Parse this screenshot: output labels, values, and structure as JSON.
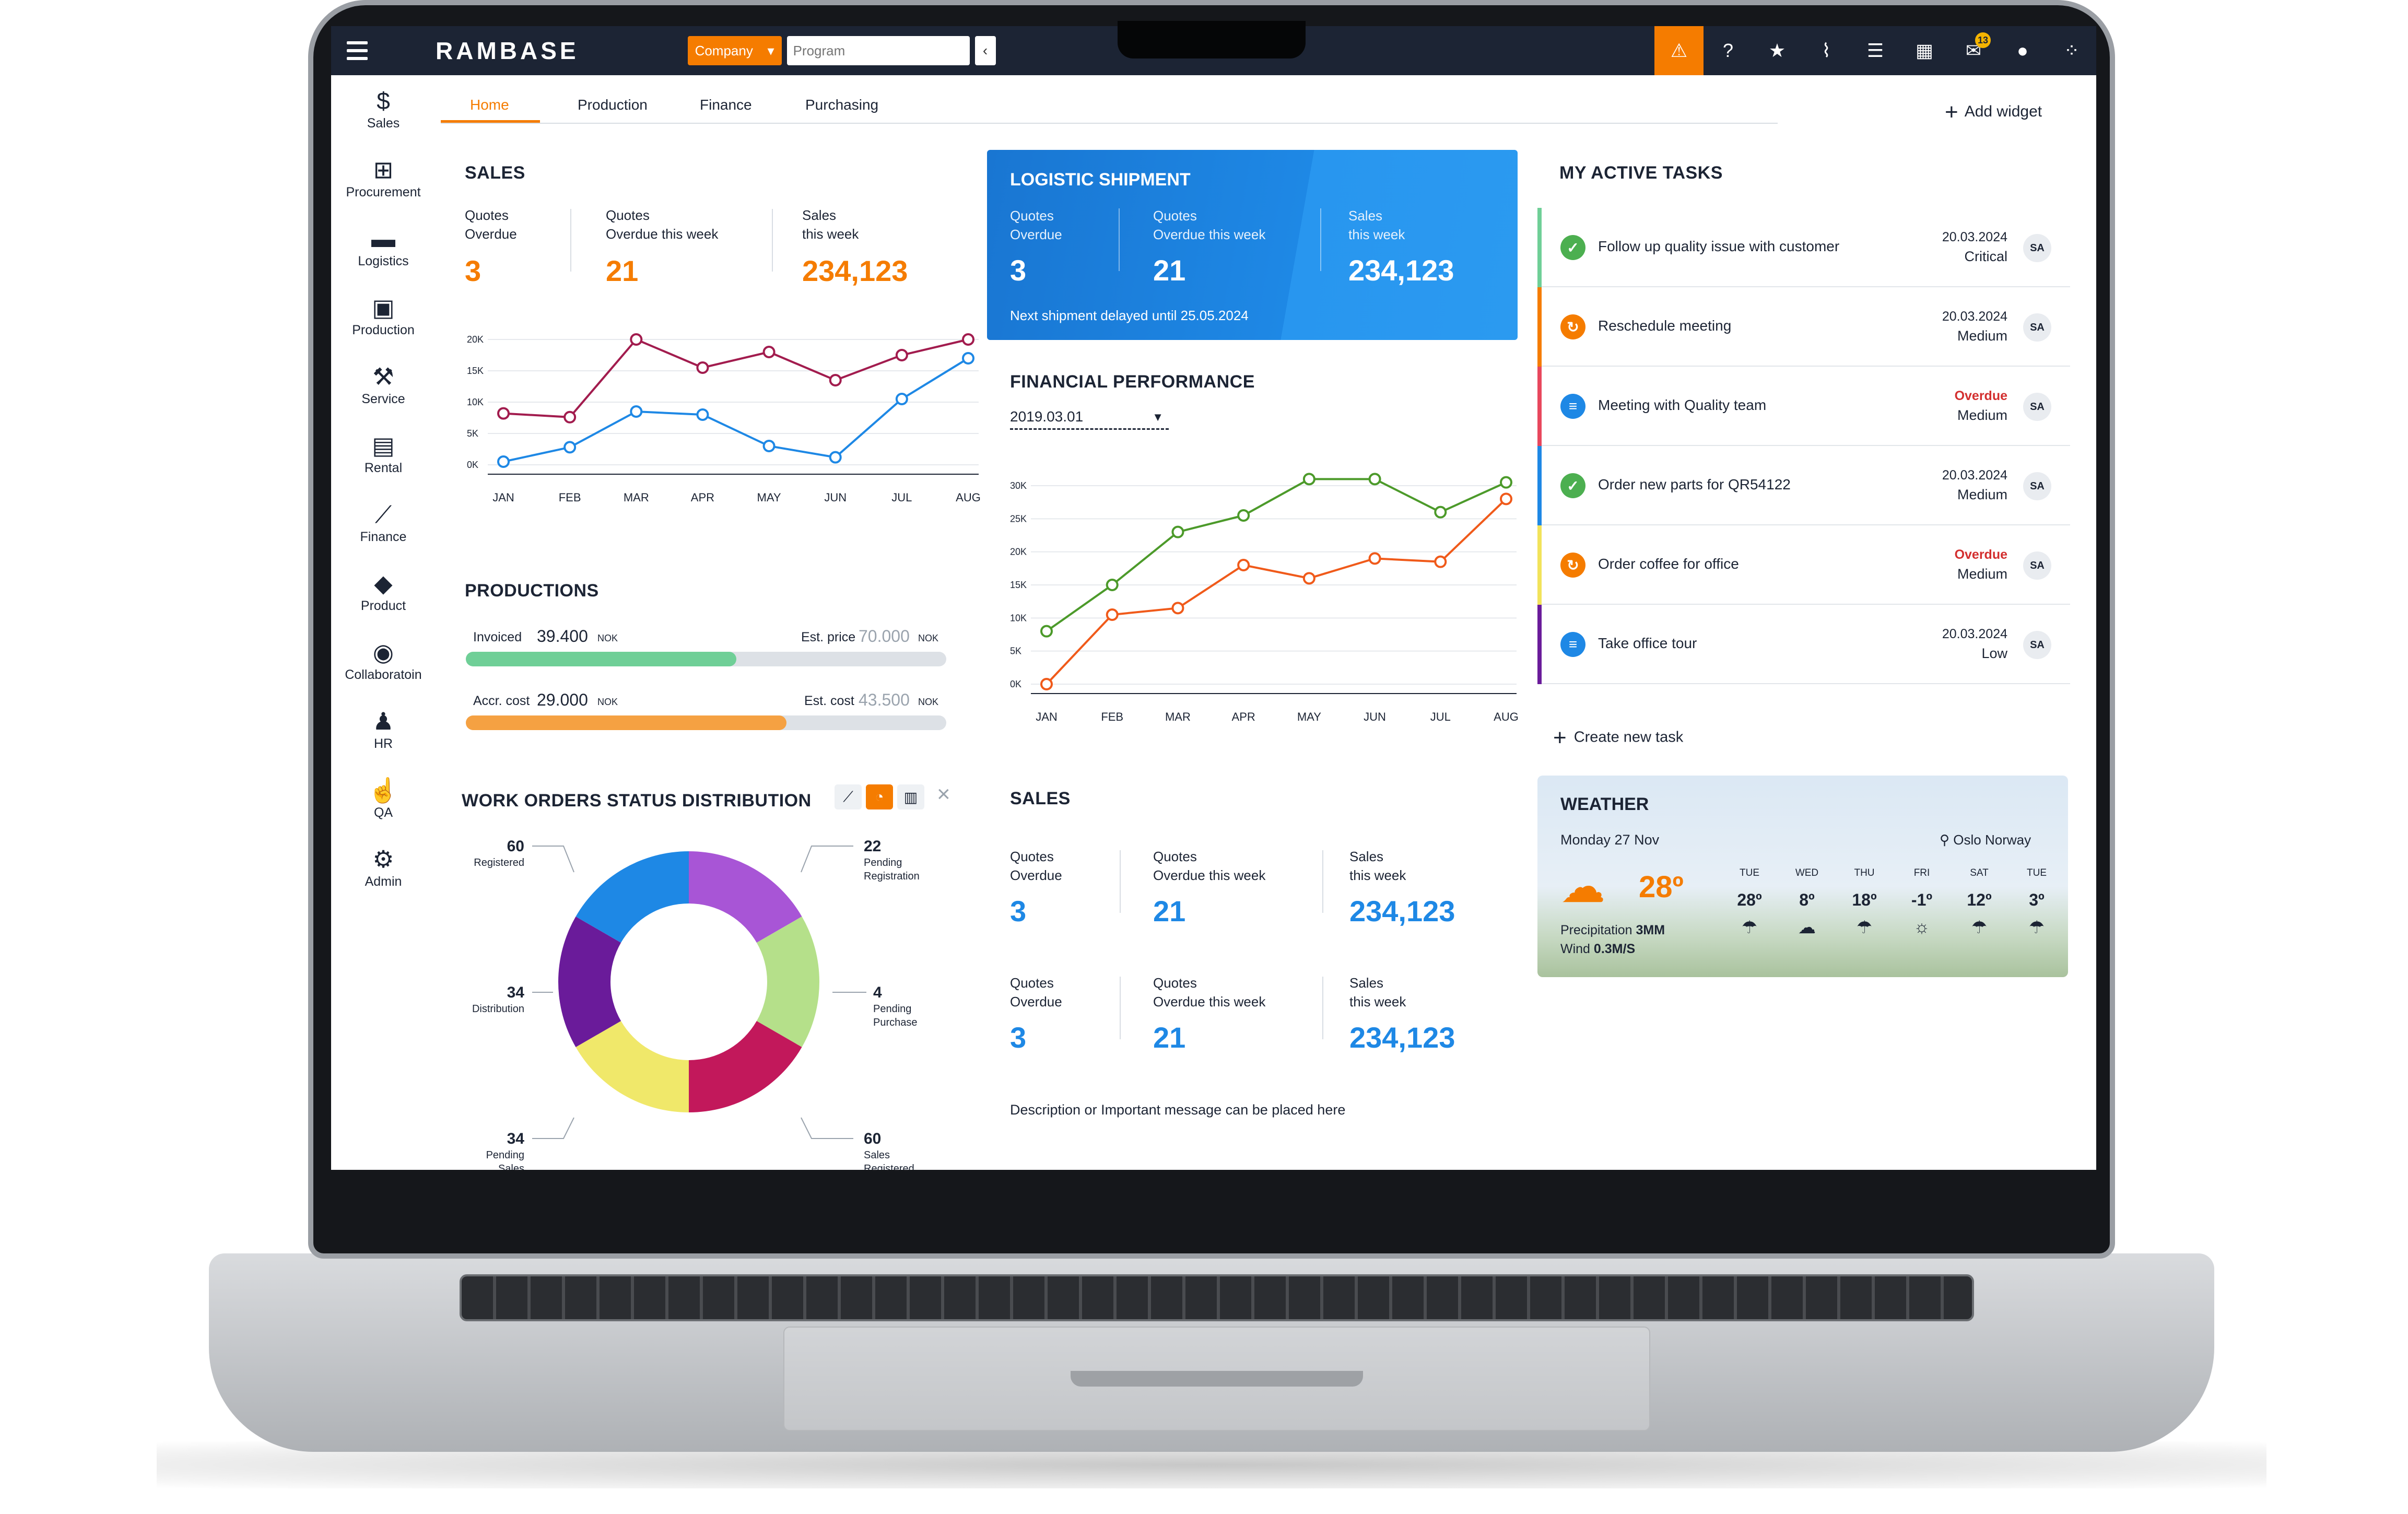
{
  "topbar": {
    "logo": "RAMBASE",
    "company_select": "Company",
    "program_placeholder": "Program",
    "mail_badge": "13"
  },
  "sidebar": {
    "items": [
      {
        "label": "Sales",
        "icon": "money-bag-icon"
      },
      {
        "label": "Procurement",
        "icon": "cart-icon"
      },
      {
        "label": "Logistics",
        "icon": "truck-icon"
      },
      {
        "label": "Production",
        "icon": "boxes-icon"
      },
      {
        "label": "Service",
        "icon": "wrench-icon"
      },
      {
        "label": "Rental",
        "icon": "calendar-money-icon"
      },
      {
        "label": "Finance",
        "icon": "trend-icon"
      },
      {
        "label": "Product",
        "icon": "box-icon"
      },
      {
        "label": "Collaboratoin",
        "icon": "chat-icon"
      },
      {
        "label": "HR",
        "icon": "person-icon"
      },
      {
        "label": "QA",
        "icon": "thumbs-up-icon"
      },
      {
        "label": "Admin",
        "icon": "gear-icon"
      }
    ]
  },
  "tabs": {
    "items": [
      "Home",
      "Production",
      "Finance",
      "Purchasing"
    ],
    "active": "Home",
    "add_widget": "Add widget"
  },
  "sales_widget": {
    "title": "SALES",
    "kpis": [
      {
        "label1": "Quotes",
        "label2": "Overdue",
        "value": "3"
      },
      {
        "label1": "Quotes",
        "label2": "Overdue this week",
        "value": "21"
      },
      {
        "label1": "Sales",
        "label2": "this week",
        "value": "234,123"
      }
    ]
  },
  "logistic": {
    "title": "LOGISTIC SHIPMENT",
    "kpis": [
      {
        "label1": "Quotes",
        "label2": "Overdue",
        "value": "3"
      },
      {
        "label1": "Quotes",
        "label2": "Overdue this week",
        "value": "21"
      },
      {
        "label1": "Sales",
        "label2": "this week",
        "value": "234,123"
      }
    ],
    "note": "Next shipment delayed until 25.05.2024"
  },
  "productions": {
    "title": "PRODUCTIONS",
    "invoiced_label": "Invoiced",
    "invoiced_value": "39.400",
    "est_price_label": "Est. price",
    "est_price_value": "70.000",
    "accr_label": "Accr. cost",
    "accr_value": "29.000",
    "est_cost_label": "Est. cost",
    "est_cost_value": "43.500",
    "unit": "NOK",
    "invoiced_progress": 0.563,
    "cost_progress": 0.667,
    "colors": {
      "invoiced": "#6fcf97",
      "cost": "#f5a142"
    }
  },
  "work_orders": {
    "title": "WORK ORDERS STATUS DISTRIBUTION"
  },
  "financial": {
    "title": "FINANCIAL PERFORMANCE",
    "date": "2019.03.01"
  },
  "sales2": {
    "title": "SALES",
    "row1": [
      {
        "label1": "Quotes",
        "label2": "Overdue",
        "value": "3"
      },
      {
        "label1": "Quotes",
        "label2": "Overdue this week",
        "value": "21"
      },
      {
        "label1": "Sales",
        "label2": "this week",
        "value": "234,123"
      }
    ],
    "row2": [
      {
        "label1": "Quotes",
        "label2": "Overdue",
        "value": "3"
      },
      {
        "label1": "Quotes",
        "label2": "Overdue this week",
        "value": "21"
      },
      {
        "label1": "Sales",
        "label2": "this week",
        "value": "234,123"
      }
    ],
    "description": "Description or Important message can be placed here"
  },
  "tasks": {
    "title": "MY ACTIVE TASKS",
    "items": [
      {
        "name": "Follow up quality issue with customer",
        "date": "20.03.2024",
        "priority": "Critical",
        "initials": "SA",
        "status": "done",
        "color": "#6fcf97"
      },
      {
        "name": "Reschedule meeting",
        "date": "20.03.2024",
        "priority": "Medium",
        "initials": "SA",
        "status": "pending",
        "color": "#f57c00"
      },
      {
        "name": "Meeting with Quality team",
        "date": "Overdue",
        "priority": "Medium",
        "initials": "SA",
        "status": "list",
        "color": "#e8475d"
      },
      {
        "name": "Order new parts for QR54122",
        "date": "20.03.2024",
        "priority": "Medium",
        "initials": "SA",
        "status": "done",
        "color": "#1e88e5"
      },
      {
        "name": "Order coffee for office",
        "date": "Overdue",
        "priority": "Medium",
        "initials": "SA",
        "status": "pending",
        "color": "#f2e35b"
      },
      {
        "name": "Take office tour",
        "date": "20.03.2024",
        "priority": "Low",
        "initials": "SA",
        "status": "list",
        "color": "#6a1b9a"
      }
    ],
    "create": "Create new task"
  },
  "weather": {
    "title": "WEATHER",
    "day": "Monday 27 Nov",
    "location": "Oslo Norway",
    "temp": "28º",
    "precip_label": "Precipitation",
    "precip_value": "3MM",
    "wind_label": "Wind",
    "wind_value": "0.3M/S",
    "forecast": [
      {
        "day": "TUE",
        "temp": "28º",
        "icon": "rain-cloud-icon"
      },
      {
        "day": "WED",
        "temp": "8º",
        "icon": "cloud-icon"
      },
      {
        "day": "THU",
        "temp": "18º",
        "icon": "rain-cloud-icon"
      },
      {
        "day": "FRI",
        "temp": "-1º",
        "icon": "partly-cloudy-icon"
      },
      {
        "day": "SAT",
        "temp": "12º",
        "icon": "rain-cloud-icon"
      },
      {
        "day": "TUE",
        "temp": "3º",
        "icon": "rain-cloud-icon"
      }
    ]
  },
  "chart_data": [
    {
      "type": "line",
      "name": "sales-chart",
      "categories": [
        "JAN",
        "FEB",
        "MAR",
        "APR",
        "MAY",
        "JUN",
        "JUL",
        "AUG"
      ],
      "yticks": [
        "20K",
        "15K",
        "10K",
        "5K",
        "0K"
      ],
      "ylim": [
        0,
        20000
      ],
      "series": [
        {
          "color": "#a21c4e",
          "values": [
            8200,
            7600,
            20000,
            15500,
            18000,
            13500,
            17500,
            20000
          ]
        },
        {
          "color": "#1e88e5",
          "values": [
            500,
            2800,
            8500,
            8000,
            3000,
            1200,
            10500,
            17000
          ]
        }
      ],
      "grid": true
    },
    {
      "type": "line",
      "name": "financial-chart",
      "categories": [
        "JAN",
        "FEB",
        "MAR",
        "APR",
        "MAY",
        "JUN",
        "JUL",
        "AUG"
      ],
      "yticks": [
        "30K",
        "25K",
        "20K",
        "15K",
        "10K",
        "5K",
        "0K"
      ],
      "ylim": [
        0,
        30000
      ],
      "series": [
        {
          "color": "#4c9a2a",
          "values": [
            8000,
            15000,
            23000,
            25500,
            31000,
            31000,
            26000,
            30500
          ]
        },
        {
          "color": "#f05a1a",
          "values": [
            0,
            10500,
            11500,
            18000,
            16000,
            19000,
            18500,
            28000
          ]
        }
      ],
      "grid": true
    },
    {
      "type": "pie",
      "name": "work-orders-donut",
      "slices": [
        {
          "label": "Pending Registration",
          "value": 22,
          "color": "#a855d6"
        },
        {
          "label": "Pending Purchase",
          "value": 4,
          "color": "#b5e08a"
        },
        {
          "label": "Sales Registered",
          "value": 60,
          "color": "#c2185b"
        },
        {
          "label": "Pending Sales",
          "value": 34,
          "color": "#f0e86a"
        },
        {
          "label": "Distribution",
          "value": 34,
          "color": "#6a1b9a"
        },
        {
          "label": "Registered",
          "value": 60,
          "color": "#1e88e5"
        }
      ],
      "labels": [
        {
          "num": "60",
          "text": "Registered"
        },
        {
          "num": "22",
          "text": "Pending",
          "text2": "Registration"
        },
        {
          "num": "34",
          "text": "Distribution"
        },
        {
          "num": "4",
          "text": "Pending",
          "text2": "Purchase"
        },
        {
          "num": "34",
          "text": "Pending",
          "text2": "Sales"
        },
        {
          "num": "60",
          "text": "Sales",
          "text2": "Registered"
        }
      ]
    }
  ]
}
